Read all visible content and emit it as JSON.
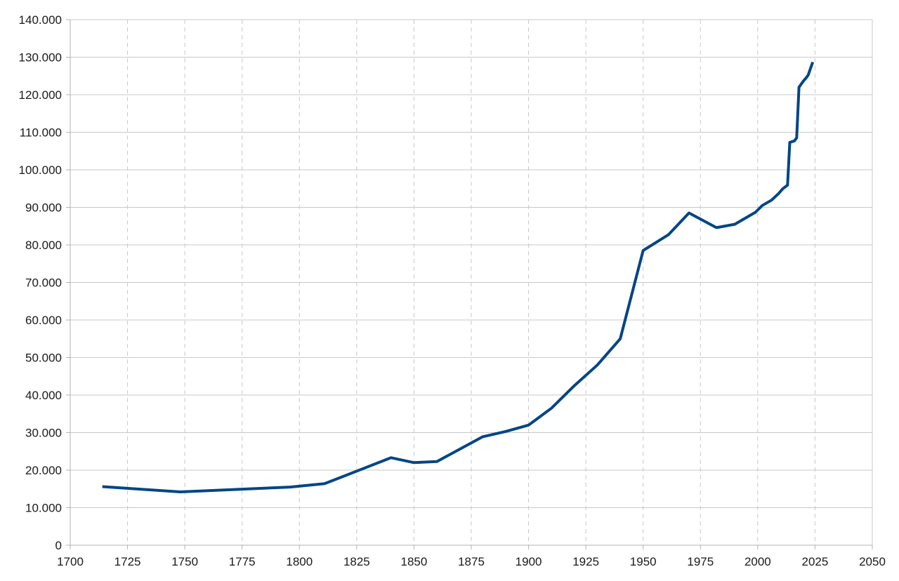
{
  "chart_data": {
    "type": "line",
    "title": "",
    "xlabel": "",
    "ylabel": "",
    "xlim": [
      1700,
      2050
    ],
    "ylim": [
      0,
      140000
    ],
    "x_ticks": [
      1700,
      1725,
      1750,
      1775,
      1800,
      1825,
      1850,
      1875,
      1900,
      1925,
      1950,
      1975,
      2000,
      2025,
      2050
    ],
    "x_tick_labels": [
      "1700",
      "1725",
      "1750",
      "1775",
      "1800",
      "1825",
      "1850",
      "1875",
      "1900",
      "1925",
      "1950",
      "1975",
      "2000",
      "2025",
      "2050"
    ],
    "y_ticks": [
      0,
      10000,
      20000,
      30000,
      40000,
      50000,
      60000,
      70000,
      80000,
      90000,
      100000,
      110000,
      120000,
      130000,
      140000
    ],
    "y_tick_labels": [
      "0",
      "10.000",
      "20.000",
      "30.000",
      "40.000",
      "50.000",
      "60.000",
      "70.000",
      "80.000",
      "90.000",
      "100.000",
      "110.000",
      "120.000",
      "130.000",
      "140.000"
    ],
    "grid": {
      "horizontal": "solid",
      "vertical": "dashed"
    },
    "legend": "none",
    "colors": {
      "line": "#004586",
      "grid": "#c8c8c8",
      "axis": "#b3b3b3",
      "text": "#1a1a1a"
    },
    "series": [
      {
        "x": [
          1714,
          1748,
          1796,
          1811,
          1840,
          1850,
          1860,
          1880,
          1890,
          1900,
          1910,
          1920,
          1930,
          1940,
          1950,
          1961,
          1970,
          1982,
          1990,
          1999,
          2002,
          2006,
          2009,
          2011,
          2013,
          2014,
          2016,
          2017,
          2018,
          2020,
          2021,
          2022,
          2024
        ],
        "values": [
          15600,
          14200,
          15500,
          16400,
          23300,
          22000,
          22300,
          28900,
          30300,
          32000,
          36500,
          42500,
          48000,
          55000,
          78500,
          82700,
          88500,
          84600,
          85500,
          88700,
          90500,
          91900,
          93600,
          95000,
          95900,
          107300,
          107700,
          108500,
          122000,
          123700,
          124400,
          125200,
          128700
        ]
      }
    ]
  }
}
